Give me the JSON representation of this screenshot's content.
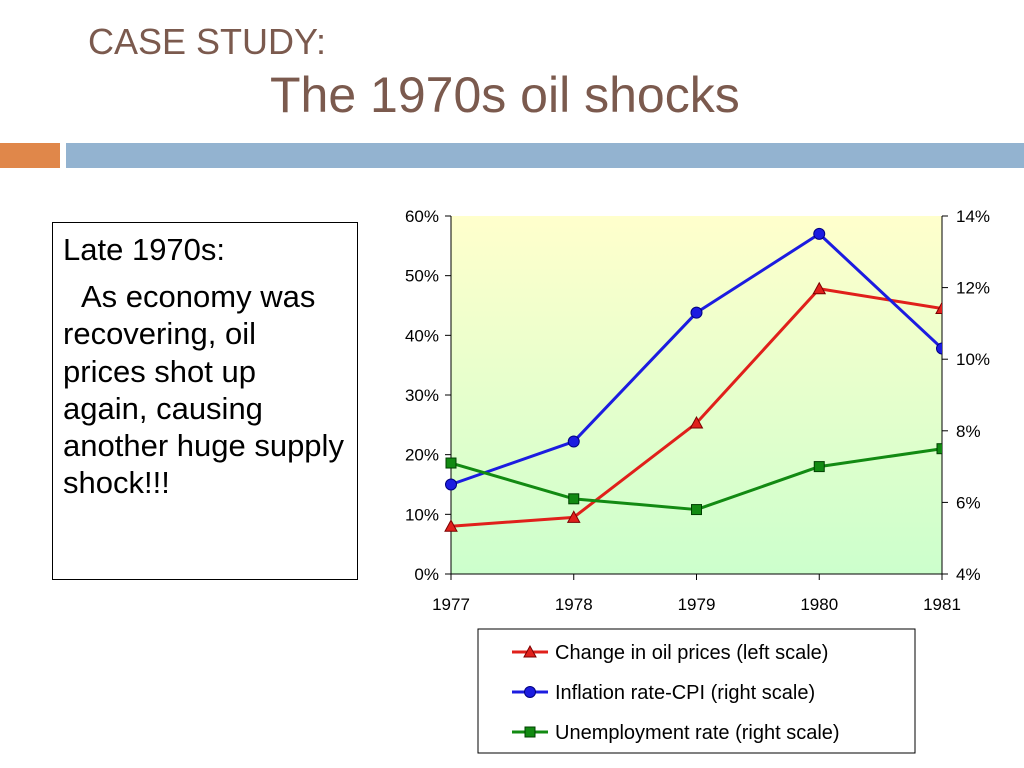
{
  "slide": {
    "title_line1": "CASE STUDY:",
    "title_line2": "The 1970s oil shocks",
    "accent_orange": "#e0874a",
    "accent_blue": "#93b3d0"
  },
  "textbox": {
    "heading": "Late 1970s:",
    "body": "As economy was recovering, oil prices shot up again, causing another huge supply shock!!!"
  },
  "chart_data": {
    "type": "line",
    "x": [
      "1977",
      "1978",
      "1979",
      "1980",
      "1981"
    ],
    "left_axis": {
      "ylim": [
        0,
        60
      ],
      "ticks": [
        "0%",
        "10%",
        "20%",
        "30%",
        "40%",
        "50%",
        "60%"
      ]
    },
    "right_axis": {
      "ylim": [
        4,
        14
      ],
      "ticks": [
        "4%",
        "6%",
        "8%",
        "10%",
        "12%",
        "14%"
      ]
    },
    "series": [
      {
        "name": "Change in oil prices (left scale)",
        "axis": "left",
        "color": "#e0201b",
        "marker": "triangle",
        "values": [
          8.0,
          9.5,
          25.3,
          47.8,
          44.5
        ]
      },
      {
        "name": "Inflation rate-CPI (right scale)",
        "axis": "right",
        "color": "#1c1ce0",
        "marker": "circle",
        "values": [
          6.5,
          7.7,
          11.3,
          13.5,
          10.3
        ]
      },
      {
        "name": "Unemployment rate (right scale)",
        "axis": "right",
        "color": "#128a12",
        "marker": "square",
        "values": [
          7.1,
          6.1,
          5.8,
          7.0,
          7.5
        ]
      }
    ],
    "plot_background": [
      "#ffffcc",
      "#ccffcc"
    ],
    "legend_position": "bottom",
    "grid": false
  }
}
